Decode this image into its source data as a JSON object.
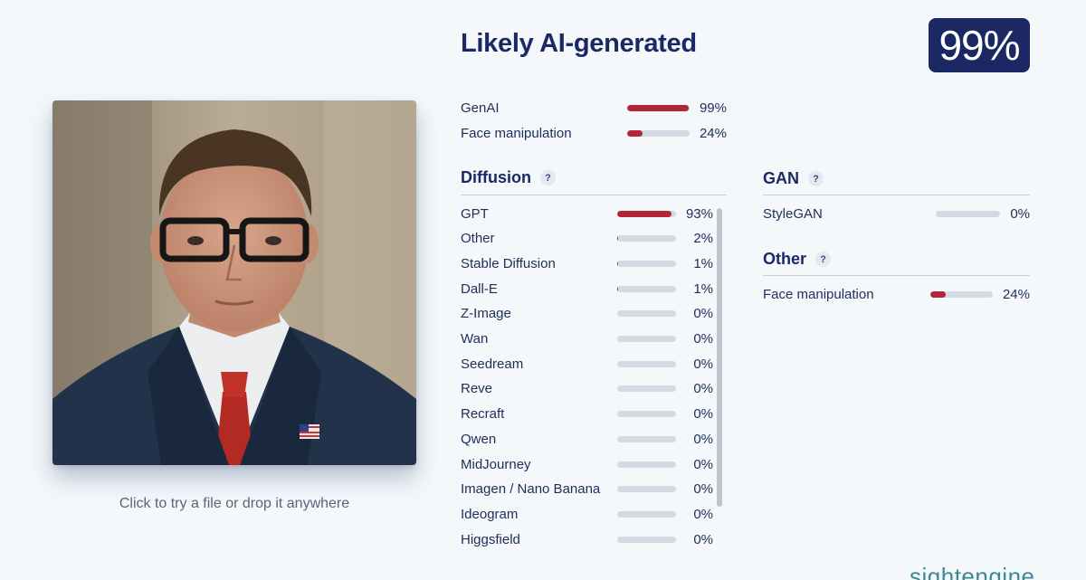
{
  "headline": "Likely AI-generated",
  "score": "99%",
  "drop_hint": "Click to try a file or drop it anywhere",
  "summary": [
    {
      "label": "GenAI",
      "value": 99,
      "pct": "99%"
    },
    {
      "label": "Face manipulation",
      "value": 24,
      "pct": "24%"
    }
  ],
  "diffusion": {
    "title": "Diffusion",
    "help": "?",
    "items": [
      {
        "label": "GPT",
        "value": 93,
        "pct": "93%"
      },
      {
        "label": "Other",
        "value": 2,
        "pct": "2%"
      },
      {
        "label": "Stable Diffusion",
        "value": 1,
        "pct": "1%"
      },
      {
        "label": "Dall-E",
        "value": 1,
        "pct": "1%"
      },
      {
        "label": "Z-Image",
        "value": 0,
        "pct": "0%"
      },
      {
        "label": "Wan",
        "value": 0,
        "pct": "0%"
      },
      {
        "label": "Seedream",
        "value": 0,
        "pct": "0%"
      },
      {
        "label": "Reve",
        "value": 0,
        "pct": "0%"
      },
      {
        "label": "Recraft",
        "value": 0,
        "pct": "0%"
      },
      {
        "label": "Qwen",
        "value": 0,
        "pct": "0%"
      },
      {
        "label": "MidJourney",
        "value": 0,
        "pct": "0%"
      },
      {
        "label": "Imagen / Nano Banana",
        "value": 0,
        "pct": "0%"
      },
      {
        "label": "Ideogram",
        "value": 0,
        "pct": "0%"
      },
      {
        "label": "Higgsfield",
        "value": 0,
        "pct": "0%"
      }
    ]
  },
  "gan": {
    "title": "GAN",
    "help": "?",
    "items": [
      {
        "label": "StyleGAN",
        "value": 0,
        "pct": "0%"
      }
    ]
  },
  "other": {
    "title": "Other",
    "help": "?",
    "items": [
      {
        "label": "Face manipulation",
        "value": 24,
        "pct": "24%"
      }
    ]
  },
  "brand": "sightengine",
  "colors": {
    "accent": "#1c2863",
    "bar_fill": "#b3263a",
    "bar_track": "#d3dae4",
    "brand": "#3d8a95"
  }
}
